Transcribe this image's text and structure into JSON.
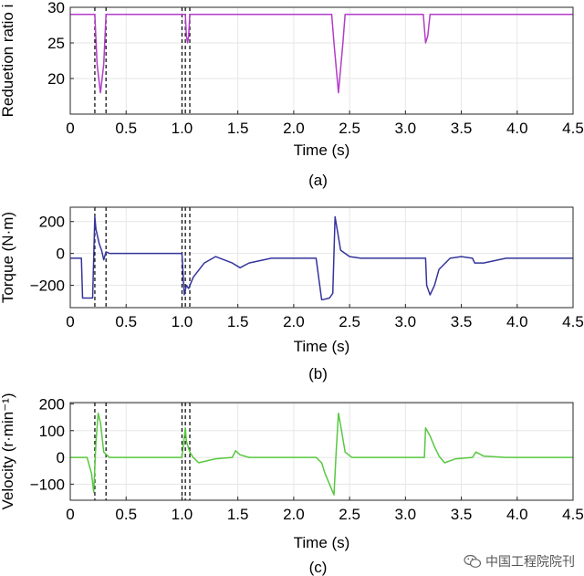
{
  "watermark": {
    "text": "中国工程院院刊",
    "icon": "wechat-icon"
  },
  "chart_data": [
    {
      "id": "a",
      "type": "line",
      "caption": "(a)",
      "xlabel": "Time (s)",
      "ylabel": "Reduetion ratio i",
      "xlim": [
        0,
        4.5
      ],
      "ylim": [
        15,
        30
      ],
      "xticks": [
        "0",
        "0.5",
        "1.0",
        "1.5",
        "2.0",
        "2.5",
        "3.0",
        "3.5",
        "4.0",
        "4.5"
      ],
      "yticks": [
        "15",
        "20",
        "25",
        "30"
      ],
      "yticks_labeled": [
        "20",
        "25",
        "30"
      ],
      "grid": true,
      "color": "#b43cc8",
      "vlines": [
        0.22,
        0.32,
        1.0,
        1.03,
        1.07
      ],
      "series": [
        {
          "x": [
            0,
            0.22,
            0.24,
            0.27,
            0.3,
            0.32,
            0.33,
            1.03,
            1.04,
            1.05,
            1.06,
            1.07,
            2.34,
            2.36,
            2.4,
            2.44,
            2.46,
            3.16,
            3.18,
            3.2,
            3.22,
            4.5
          ],
          "y": [
            29,
            29,
            22,
            18,
            22,
            29,
            29,
            29,
            26,
            25,
            26,
            29,
            29,
            25,
            18,
            25,
            29,
            29,
            25,
            26,
            29,
            29
          ]
        }
      ]
    },
    {
      "id": "b",
      "type": "line",
      "caption": "(b)",
      "xlabel": "Time (s)",
      "ylabel": "Torque (N·m)",
      "xlim": [
        0,
        4.5
      ],
      "ylim": [
        -340,
        290
      ],
      "xticks": [
        "0",
        "0.5",
        "1.0",
        "1.5",
        "2.0",
        "2.5",
        "3.0",
        "3.5",
        "4.0",
        "4.5"
      ],
      "yticks_labeled": [
        "-200",
        "0",
        "200"
      ],
      "yticks": [
        "-200",
        "0",
        "200"
      ],
      "grid": true,
      "color": "#34349c",
      "vlines": [
        0.22,
        0.32,
        1.0,
        1.03,
        1.07
      ],
      "series": [
        {
          "x": [
            0,
            0.1,
            0.11,
            0.2,
            0.22,
            0.23,
            0.26,
            0.28,
            0.3,
            0.32,
            0.35,
            0.4,
            1.0,
            1.02,
            1.04,
            1.06,
            1.1,
            1.2,
            1.3,
            1.45,
            1.52,
            1.6,
            1.8,
            2.2,
            2.25,
            2.26,
            2.32,
            2.35,
            2.37,
            2.42,
            2.5,
            2.6,
            2.9,
            3.18,
            3.19,
            3.22,
            3.26,
            3.3,
            3.4,
            3.5,
            3.6,
            3.62,
            3.7,
            3.9,
            4.5
          ],
          "y": [
            -30,
            -30,
            -280,
            -280,
            230,
            150,
            60,
            20,
            -40,
            10,
            0,
            0,
            0,
            -260,
            -200,
            -220,
            -150,
            -60,
            -20,
            -60,
            -90,
            -60,
            -30,
            -30,
            -290,
            -290,
            -280,
            -250,
            230,
            20,
            -20,
            -30,
            -30,
            -30,
            -200,
            -260,
            -200,
            -100,
            -30,
            -20,
            -30,
            -60,
            -60,
            -30,
            -30
          ]
        }
      ]
    },
    {
      "id": "c",
      "type": "line",
      "caption": "(c)",
      "xlabel": "Time (s)",
      "ylabel": "Velocity (r·min⁻¹)",
      "xlim": [
        0,
        4.5
      ],
      "ylim": [
        -160,
        205
      ],
      "xticks": [
        "0",
        "0.5",
        "1.0",
        "1.5",
        "2.0",
        "2.5",
        "3.0",
        "3.5",
        "4.0",
        "4.5"
      ],
      "yticks_labeled": [
        "-100",
        "0",
        "100",
        "200"
      ],
      "yticks": [
        "-100",
        "0",
        "100",
        "200"
      ],
      "grid": true,
      "color": "#58c840",
      "vlines": [
        0.22,
        0.32,
        1.0,
        1.03,
        1.07
      ],
      "series": [
        {
          "x": [
            0,
            0.1,
            0.15,
            0.19,
            0.21,
            0.23,
            0.25,
            0.27,
            0.3,
            0.35,
            1.0,
            1.03,
            1.04,
            1.07,
            1.1,
            1.15,
            1.2,
            1.3,
            1.45,
            1.48,
            1.52,
            1.6,
            1.8,
            2.2,
            2.25,
            2.28,
            2.32,
            2.36,
            2.38,
            2.4,
            2.42,
            2.46,
            2.52,
            2.6,
            3.17,
            3.18,
            3.22,
            3.26,
            3.3,
            3.35,
            3.45,
            3.6,
            3.63,
            3.7,
            3.9,
            4.5
          ],
          "y": [
            0,
            0,
            0,
            -60,
            -130,
            60,
            165,
            130,
            20,
            0,
            0,
            110,
            60,
            20,
            0,
            -20,
            -15,
            -5,
            0,
            25,
            10,
            0,
            0,
            0,
            -20,
            -60,
            -100,
            -140,
            20,
            165,
            120,
            20,
            0,
            0,
            0,
            110,
            80,
            40,
            5,
            -20,
            -5,
            0,
            20,
            5,
            0,
            0
          ]
        }
      ]
    }
  ]
}
